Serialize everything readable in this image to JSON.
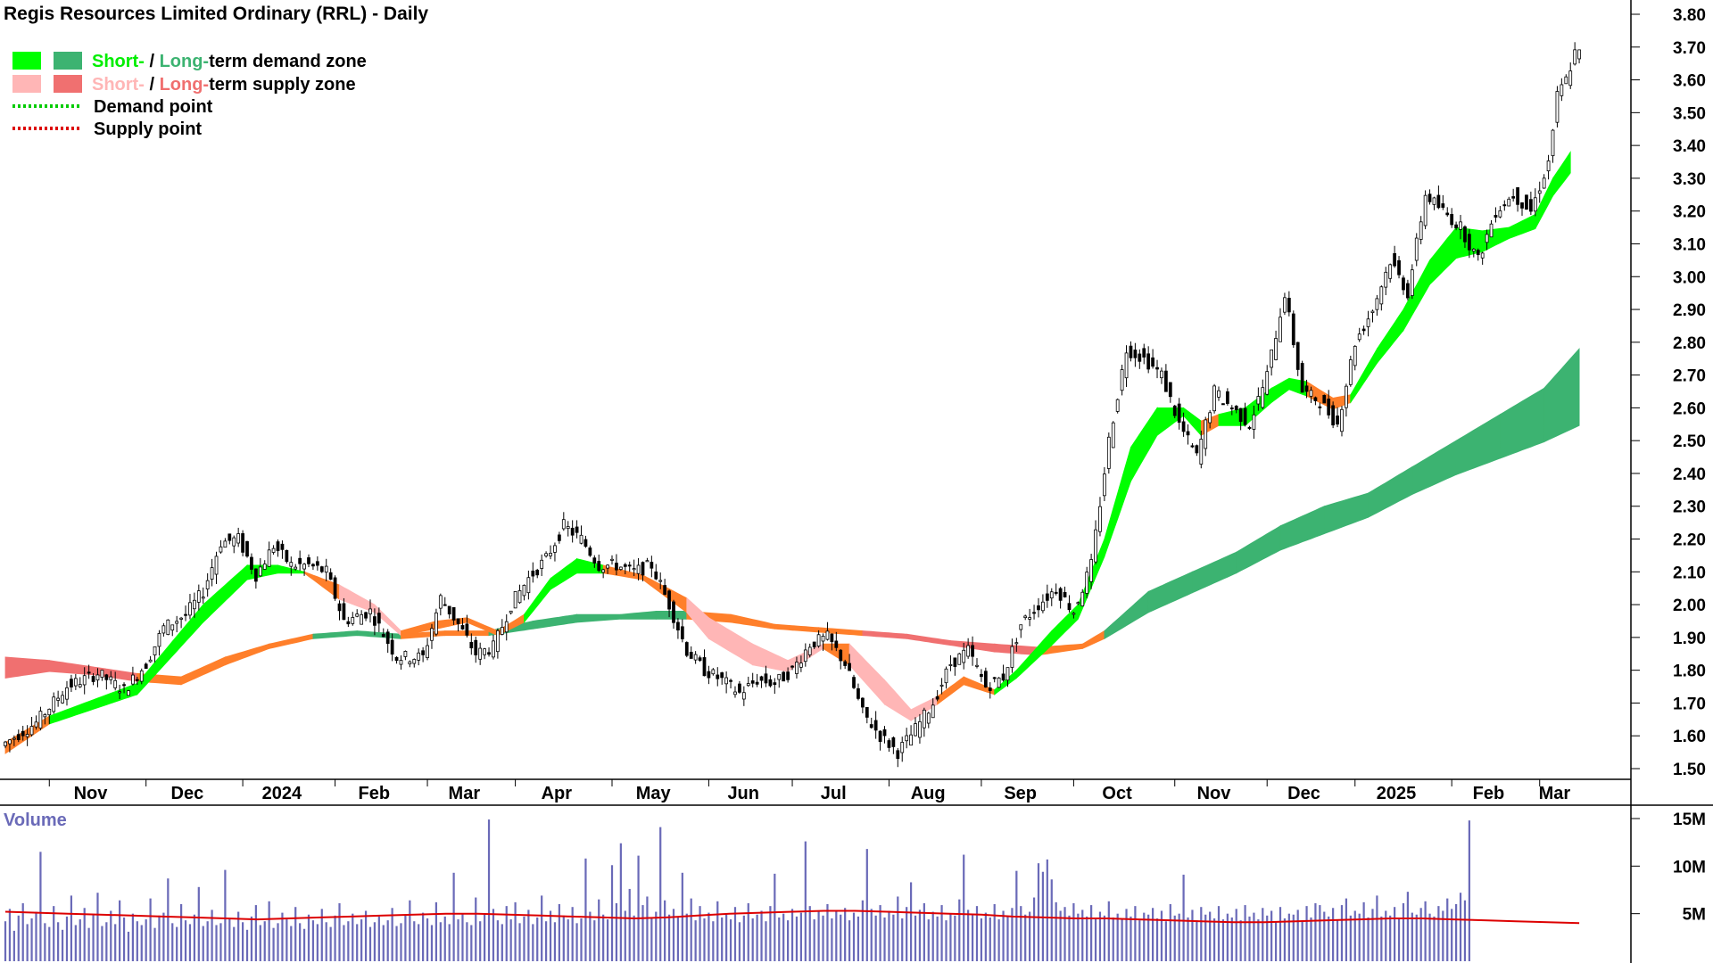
{
  "title": "Regis Resources Limited Ordinary (RRL) - Daily",
  "legend": {
    "row1": {
      "short": "Short-",
      "sep": " / ",
      "long": "Long-",
      "rest": "term demand zone"
    },
    "row2": {
      "short": "Short-",
      "sep": " / ",
      "long": "Long-",
      "rest": "term supply zone"
    },
    "row3": "Demand point",
    "row4": "Supply point"
  },
  "colors": {
    "short_demand": "#00ff00",
    "long_demand": "#3cb371",
    "short_supply": "#ffb6b6",
    "long_supply": "#f07070",
    "zone_orange": "#ff7f2a",
    "demand_point": "#00cc00",
    "supply_point": "#dd0000",
    "volume_bar": "#6a6ab8",
    "volume_ma": "#dd0000",
    "volume_label": "#6a6ab8"
  },
  "price_axis": {
    "ticks": [
      "3.80",
      "3.70",
      "3.60",
      "3.50",
      "3.40",
      "3.30",
      "3.20",
      "3.10",
      "3.00",
      "2.90",
      "2.80",
      "2.70",
      "2.60",
      "2.50",
      "2.40",
      "2.30",
      "2.20",
      "2.10",
      "2.00",
      "1.90",
      "1.80",
      "1.70",
      "1.60",
      "1.50"
    ],
    "min": 1.5,
    "max": 3.8
  },
  "volume_axis": {
    "label": "Volume",
    "ticks": [
      {
        "label": "15M",
        "value": 15000000
      },
      {
        "label": "10M",
        "value": 10000000
      },
      {
        "label": "5M",
        "value": 5000000
      }
    ],
    "max": 15000000
  },
  "time_axis": {
    "months": [
      "Nov",
      "Dec",
      "2024",
      "Feb",
      "Mar",
      "Apr",
      "May",
      "Jun",
      "Jul",
      "Aug",
      "Sep",
      "Oct",
      "Nov",
      "Dec",
      "2025",
      "Feb",
      "Mar"
    ],
    "month_start_index": [
      10,
      32,
      54,
      75,
      96,
      116,
      138,
      160,
      179,
      201,
      222,
      243,
      266,
      287,
      307,
      329,
      349
    ]
  },
  "chart_data": {
    "type": "candlestick",
    "title": "Regis Resources Limited Ordinary (RRL) - Daily",
    "price_anchors": [
      [
        0,
        1.57
      ],
      [
        8,
        1.64
      ],
      [
        15,
        1.75
      ],
      [
        22,
        1.79
      ],
      [
        28,
        1.74
      ],
      [
        33,
        1.82
      ],
      [
        37,
        1.93
      ],
      [
        42,
        1.97
      ],
      [
        46,
        2.04
      ],
      [
        50,
        2.19
      ],
      [
        54,
        2.2
      ],
      [
        58,
        2.09
      ],
      [
        62,
        2.18
      ],
      [
        66,
        2.12
      ],
      [
        70,
        2.12
      ],
      [
        74,
        2.1
      ],
      [
        78,
        1.95
      ],
      [
        84,
        1.98
      ],
      [
        90,
        1.84
      ],
      [
        96,
        1.84
      ],
      [
        100,
        2.02
      ],
      [
        104,
        1.94
      ],
      [
        108,
        1.85
      ],
      [
        112,
        1.87
      ],
      [
        116,
        2
      ],
      [
        120,
        2.08
      ],
      [
        124,
        2.14
      ],
      [
        128,
        2.24
      ],
      [
        132,
        2.2
      ],
      [
        136,
        2.12
      ],
      [
        140,
        2.12
      ],
      [
        144,
        2.1
      ],
      [
        148,
        2.12
      ],
      [
        152,
        2
      ],
      [
        156,
        1.86
      ],
      [
        160,
        1.8
      ],
      [
        164,
        1.77
      ],
      [
        168,
        1.73
      ],
      [
        172,
        1.77
      ],
      [
        176,
        1.76
      ],
      [
        180,
        1.8
      ],
      [
        184,
        1.88
      ],
      [
        188,
        1.9
      ],
      [
        192,
        1.82
      ],
      [
        196,
        1.67
      ],
      [
        200,
        1.6
      ],
      [
        204,
        1.55
      ],
      [
        208,
        1.62
      ],
      [
        212,
        1.7
      ],
      [
        216,
        1.82
      ],
      [
        220,
        1.86
      ],
      [
        224,
        1.75
      ],
      [
        228,
        1.78
      ],
      [
        232,
        1.94
      ],
      [
        236,
        2
      ],
      [
        240,
        2.05
      ],
      [
        244,
        1.98
      ],
      [
        248,
        2.12
      ],
      [
        252,
        2.5
      ],
      [
        256,
        2.78
      ],
      [
        260,
        2.75
      ],
      [
        264,
        2.7
      ],
      [
        268,
        2.55
      ],
      [
        272,
        2.45
      ],
      [
        276,
        2.65
      ],
      [
        280,
        2.6
      ],
      [
        284,
        2.55
      ],
      [
        288,
        2.7
      ],
      [
        292,
        2.95
      ],
      [
        296,
        2.65
      ],
      [
        300,
        2.62
      ],
      [
        304,
        2.55
      ],
      [
        308,
        2.8
      ],
      [
        312,
        2.9
      ],
      [
        316,
        3.05
      ],
      [
        320,
        2.95
      ],
      [
        324,
        3.25
      ],
      [
        328,
        3.2
      ],
      [
        332,
        3.15
      ],
      [
        336,
        3.05
      ],
      [
        340,
        3.2
      ],
      [
        344,
        3.25
      ],
      [
        348,
        3.2
      ],
      [
        352,
        3.35
      ],
      [
        354,
        3.55
      ],
      [
        356,
        3.6
      ],
      [
        358,
        3.68
      ]
    ],
    "short_term_zone": [
      [
        0,
        1.55,
        1.58,
        "orange"
      ],
      [
        10,
        1.64,
        1.66,
        "green"
      ],
      [
        30,
        1.73,
        1.76,
        "green"
      ],
      [
        45,
        1.95,
        2.0,
        "green"
      ],
      [
        55,
        2.08,
        2.12,
        "green"
      ],
      [
        62,
        2.1,
        2.12,
        "green"
      ],
      [
        68,
        2.1,
        2.1,
        "orange"
      ],
      [
        76,
        2.02,
        2.06,
        "pink"
      ],
      [
        84,
        1.98,
        2.0,
        "pink"
      ],
      [
        90,
        1.91,
        1.92,
        "orange"
      ],
      [
        98,
        1.93,
        1.95,
        "orange"
      ],
      [
        105,
        1.95,
        1.96,
        "orange"
      ],
      [
        112,
        1.91,
        1.92,
        "orange"
      ],
      [
        118,
        1.95,
        1.97,
        "green"
      ],
      [
        124,
        2.05,
        2.08,
        "green"
      ],
      [
        130,
        2.1,
        2.14,
        "green"
      ],
      [
        136,
        2.1,
        2.12,
        "orange"
      ],
      [
        145,
        2.08,
        2.09,
        "orange"
      ],
      [
        155,
        1.98,
        2.02,
        "pink"
      ],
      [
        160,
        1.9,
        1.96,
        "pink"
      ],
      [
        170,
        1.82,
        1.88,
        "pink"
      ],
      [
        178,
        1.8,
        1.83,
        "pink"
      ],
      [
        186,
        1.87,
        1.88,
        "orange"
      ],
      [
        192,
        1.82,
        1.88,
        "pink"
      ],
      [
        200,
        1.7,
        1.77,
        "pink"
      ],
      [
        206,
        1.65,
        1.68,
        "pink"
      ],
      [
        212,
        1.7,
        1.72,
        "orange"
      ],
      [
        218,
        1.76,
        1.78,
        "orange"
      ],
      [
        225,
        1.73,
        1.74,
        "green"
      ],
      [
        230,
        1.78,
        1.8,
        "green"
      ],
      [
        238,
        1.88,
        1.92,
        "green"
      ],
      [
        244,
        1.96,
        2.0,
        "green"
      ],
      [
        250,
        2.15,
        2.2,
        "green"
      ],
      [
        256,
        2.38,
        2.48,
        "green"
      ],
      [
        262,
        2.52,
        2.6,
        "green"
      ],
      [
        268,
        2.58,
        2.6,
        "green"
      ],
      [
        272,
        2.52,
        2.56,
        "orange"
      ],
      [
        276,
        2.55,
        2.58,
        "green"
      ],
      [
        282,
        2.55,
        2.6,
        "green"
      ],
      [
        288,
        2.62,
        2.66,
        "green"
      ],
      [
        292,
        2.66,
        2.69,
        "green"
      ],
      [
        296,
        2.64,
        2.68,
        "orange"
      ],
      [
        302,
        2.6,
        2.63,
        "orange"
      ],
      [
        306,
        2.62,
        2.64,
        "green"
      ],
      [
        312,
        2.74,
        2.78,
        "green"
      ],
      [
        318,
        2.84,
        2.9,
        "green"
      ],
      [
        324,
        2.98,
        3.05,
        "green"
      ],
      [
        330,
        3.06,
        3.15,
        "green"
      ],
      [
        336,
        3.08,
        3.14,
        "green"
      ],
      [
        342,
        3.12,
        3.15,
        "green"
      ],
      [
        348,
        3.15,
        3.19,
        "green"
      ],
      [
        352,
        3.25,
        3.3,
        "green"
      ],
      [
        356,
        3.32,
        3.38,
        "green"
      ]
    ],
    "long_term_zone": [
      [
        0,
        1.78,
        1.84,
        "red"
      ],
      [
        10,
        1.8,
        1.83,
        "red"
      ],
      [
        20,
        1.79,
        1.81,
        "red"
      ],
      [
        30,
        1.77,
        1.79,
        "orange"
      ],
      [
        40,
        1.76,
        1.78,
        "orange"
      ],
      [
        50,
        1.82,
        1.84,
        "orange"
      ],
      [
        60,
        1.87,
        1.88,
        "orange"
      ],
      [
        70,
        1.9,
        1.91,
        "green"
      ],
      [
        80,
        1.91,
        1.92,
        "green"
      ],
      [
        90,
        1.9,
        1.91,
        "orange"
      ],
      [
        100,
        1.91,
        1.92,
        "orange"
      ],
      [
        110,
        1.91,
        1.92,
        "green"
      ],
      [
        120,
        1.93,
        1.95,
        "green"
      ],
      [
        130,
        1.95,
        1.97,
        "green"
      ],
      [
        140,
        1.96,
        1.97,
        "green"
      ],
      [
        148,
        1.96,
        1.98,
        "green"
      ],
      [
        155,
        1.96,
        1.98,
        "orange"
      ],
      [
        165,
        1.95,
        1.97,
        "orange"
      ],
      [
        175,
        1.93,
        1.94,
        "orange"
      ],
      [
        185,
        1.92,
        1.93,
        "orange"
      ],
      [
        195,
        1.91,
        1.92,
        "red"
      ],
      [
        205,
        1.9,
        1.91,
        "red"
      ],
      [
        215,
        1.88,
        1.89,
        "red"
      ],
      [
        225,
        1.86,
        1.88,
        "red"
      ],
      [
        235,
        1.85,
        1.87,
        "orange"
      ],
      [
        245,
        1.87,
        1.88,
        "orange"
      ],
      [
        250,
        1.9,
        1.92,
        "green"
      ],
      [
        260,
        1.98,
        2.04,
        "green"
      ],
      [
        270,
        2.04,
        2.1,
        "green"
      ],
      [
        280,
        2.1,
        2.16,
        "green"
      ],
      [
        290,
        2.17,
        2.24,
        "green"
      ],
      [
        300,
        2.22,
        2.3,
        "green"
      ],
      [
        310,
        2.27,
        2.34,
        "green"
      ],
      [
        320,
        2.34,
        2.42,
        "green"
      ],
      [
        330,
        2.4,
        2.5,
        "green"
      ],
      [
        340,
        2.45,
        2.58,
        "green"
      ],
      [
        350,
        2.5,
        2.66,
        "green"
      ],
      [
        358,
        2.55,
        2.78,
        "green"
      ]
    ],
    "volume_series_millions": [
      4.2,
      5.5,
      3.2,
      4.8,
      6.1,
      3.9,
      4.5,
      5.2,
      11.5,
      4.0,
      3.6,
      5.8,
      4.1,
      3.3,
      4.7,
      6.9,
      3.8,
      4.4,
      5.6,
      3.5,
      4.9,
      7.2,
      3.7,
      4.1,
      5.3,
      3.9,
      6.4,
      4.6,
      3.1,
      5.0,
      4.2,
      3.8,
      4.4,
      6.6,
      3.5,
      4.8,
      5.1,
      8.7,
      4.0,
      3.6,
      6.0,
      4.3,
      3.9,
      4.9,
      7.8,
      3.7,
      4.2,
      5.4,
      3.8,
      4.0,
      9.6,
      4.5,
      3.6,
      5.2,
      4.1,
      3.3,
      4.7,
      5.9,
      3.8,
      4.2,
      6.3,
      3.5,
      4.0,
      5.1,
      4.4,
      3.7,
      5.7,
      4.0,
      3.4,
      4.9,
      4.3,
      3.9,
      5.5,
      4.1,
      3.6,
      4.8,
      6.1,
      3.8,
      4.2,
      5.0,
      3.9,
      4.4,
      5.3,
      3.6,
      4.1,
      4.7,
      3.8,
      4.3,
      5.6,
      3.7,
      4.0,
      4.9,
      6.4,
      4.2,
      3.9,
      5.1,
      4.5,
      3.8,
      6.2,
      4.1,
      4.7,
      3.9,
      9.3,
      4.4,
      5.0,
      4.1,
      3.8,
      6.7,
      4.2,
      4.9,
      14.9,
      5.5,
      4.3,
      3.9,
      5.8,
      4.4,
      6.2,
      4.0,
      4.7,
      5.4,
      3.9,
      4.6,
      6.9,
      4.2,
      5.3,
      4.1,
      6.0,
      4.8,
      4.4,
      5.7,
      4.0,
      4.5,
      10.8,
      5.2,
      4.3,
      6.5,
      4.9,
      4.4,
      10.1,
      6.1,
      12.4,
      5.3,
      7.6,
      4.8,
      11.1,
      5.9,
      6.8,
      4.5,
      5.2,
      14.1,
      6.4,
      4.9,
      5.5,
      4.7,
      9.3,
      5.0,
      6.6,
      4.3,
      5.8,
      4.5,
      5.1,
      4.2,
      6.3,
      4.6,
      5.0,
      4.4,
      5.7,
      4.1,
      4.8,
      6.1,
      4.5,
      4.9,
      5.3,
      4.2,
      5.8,
      9.2,
      4.6,
      5.0,
      4.3,
      5.5,
      4.7,
      5.1,
      12.6,
      5.8,
      4.4,
      5.2,
      4.8,
      6.0,
      4.5,
      5.3,
      4.9,
      5.6,
      4.3,
      5.1,
      4.7,
      6.4,
      11.8,
      5.5,
      4.8,
      5.9,
      4.6,
      5.3,
      4.9,
      6.8,
      4.5,
      5.7,
      8.3,
      4.8,
      5.4,
      6.1,
      4.4,
      5.2,
      4.7,
      5.9,
      4.3,
      5.0,
      4.8,
      6.5,
      11.2,
      5.4,
      4.9,
      5.8,
      4.5,
      5.1,
      4.6,
      6.0,
      4.4,
      5.3,
      4.7,
      5.6,
      9.5,
      5.8,
      4.9,
      5.2,
      6.7,
      10.3,
      9.4,
      10.7,
      8.6,
      6.2,
      5.3,
      5.7,
      4.8,
      6.1,
      5.0,
      5.4,
      4.7,
      5.9,
      4.5,
      5.2,
      4.8,
      6.3,
      4.6,
      5.0,
      4.4,
      5.5,
      4.7,
      5.8,
      4.3,
      5.1,
      4.9,
      5.6,
      4.5,
      5.3,
      4.2,
      6.0,
      4.8,
      5.0,
      9.1,
      4.6,
      5.4,
      4.3,
      5.7,
      4.9,
      5.2,
      4.5,
      5.8,
      4.4,
      5.0,
      4.6,
      5.5,
      4.3,
      5.9,
      4.7,
      5.1,
      4.4,
      5.6,
      4.8,
      5.3,
      4.2,
      5.7,
      4.5,
      5.0,
      4.9,
      5.4,
      4.3,
      5.8,
      4.6,
      6.1,
      5.9,
      5.2,
      4.7,
      5.6,
      4.4,
      5.9,
      6.6,
      4.8,
      5.3,
      5.0,
      6.2,
      4.6,
      5.5,
      6.9,
      4.7,
      5.3,
      4.8,
      5.7,
      4.5,
      6.1,
      7.3,
      5.1,
      4.9,
      5.6,
      6.3,
      5.0,
      4.7,
      5.8,
      5.3,
      6.6,
      5.5,
      6.0,
      7.2,
      6.4,
      14.8
    ],
    "volume_ma_millions": [
      5.2,
      5.1,
      5.0,
      4.9,
      4.8,
      4.7,
      4.6,
      4.5,
      4.4,
      4.5,
      4.6,
      4.7,
      4.8,
      4.9,
      5.0,
      5.0,
      4.9,
      4.8,
      4.7,
      4.6,
      4.5,
      4.6,
      4.8,
      5.0,
      5.1,
      5.2,
      5.3,
      5.3,
      5.2,
      5.1,
      5.0,
      4.9,
      4.7,
      4.6,
      4.5,
      4.5,
      4.4,
      4.3,
      4.2,
      4.1,
      4.1,
      4.2,
      4.3,
      4.4,
      4.5,
      4.5,
      4.4,
      4.3,
      4.2,
      4.1,
      4.0
    ]
  }
}
